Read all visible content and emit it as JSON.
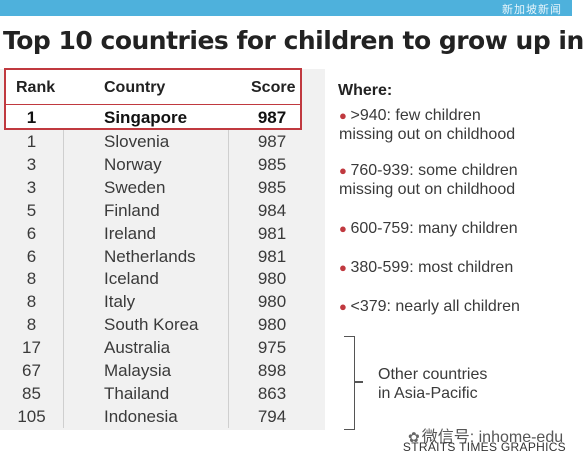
{
  "topbar": {
    "text": "新加坡新闻"
  },
  "title": "Top 10 countries for children to grow up in",
  "columns": {
    "rank": "Rank",
    "country": "Country",
    "score": "Score"
  },
  "rows": [
    {
      "rank": "1",
      "country": "Singapore",
      "score": "987"
    },
    {
      "rank": "1",
      "country": "Slovenia",
      "score": "987"
    },
    {
      "rank": "3",
      "country": "Norway",
      "score": "985"
    },
    {
      "rank": "3",
      "country": "Sweden",
      "score": "985"
    },
    {
      "rank": "5",
      "country": "Finland",
      "score": "984"
    },
    {
      "rank": "6",
      "country": "Ireland",
      "score": "981"
    },
    {
      "rank": "6",
      "country": "Netherlands",
      "score": "981"
    },
    {
      "rank": "8",
      "country": "Iceland",
      "score": "980"
    },
    {
      "rank": "8",
      "country": "Italy",
      "score": "980"
    },
    {
      "rank": "8",
      "country": "South Korea",
      "score": "980"
    },
    {
      "rank": "17",
      "country": "Australia",
      "score": "975"
    },
    {
      "rank": "67",
      "country": "Malaysia",
      "score": "898"
    },
    {
      "rank": "85",
      "country": "Thailand",
      "score": "863"
    },
    {
      "rank": "105",
      "country": "Indonesia",
      "score": "794"
    }
  ],
  "legend": {
    "heading": "Where:",
    "items": [
      {
        "line1": ">940: few children",
        "line2": "missing out on childhood"
      },
      {
        "line1": "760-939: some children",
        "line2": "missing out on childhood"
      },
      {
        "line1": "600-759: many children",
        "line2": ""
      },
      {
        "line1": "380-599: most children",
        "line2": ""
      },
      {
        "line1": "<379: nearly all children",
        "line2": ""
      }
    ]
  },
  "other_note": {
    "line1": "Other countries",
    "line2": "in Asia-Pacific"
  },
  "watermark": "微信号: inhome-edu",
  "credit": "STRAITS TIMES GRAPHICS",
  "colors": {
    "accent": "#c0393f",
    "topbar": "#4eb1dc"
  }
}
